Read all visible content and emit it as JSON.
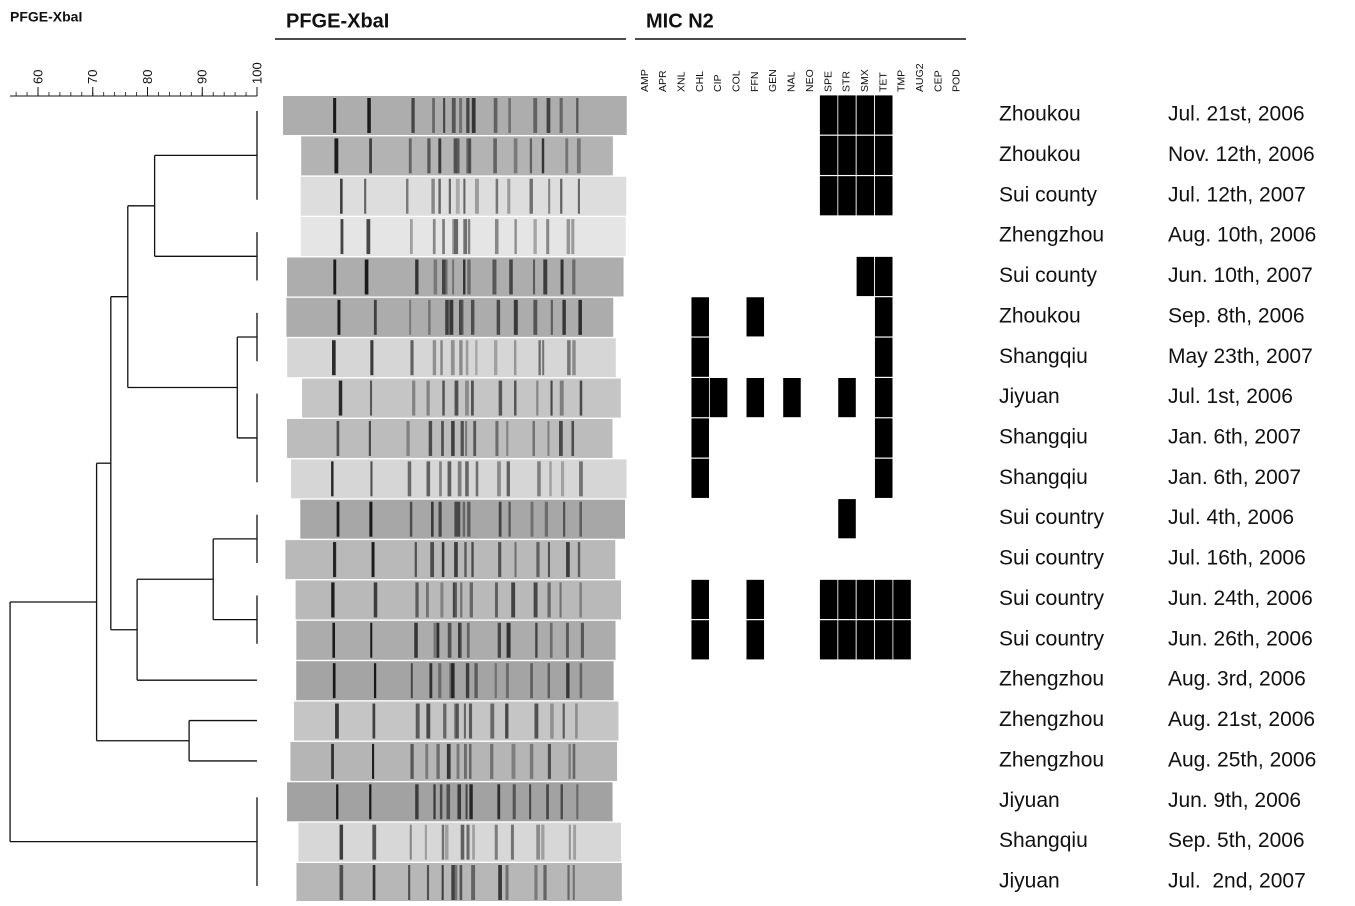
{
  "figure_label": "PFGE-XbaI",
  "scale": {
    "ticks": [
      60,
      70,
      80,
      90,
      100
    ]
  },
  "gel_header": "PFGE-XbaI",
  "mic_header": "MIC N2",
  "antibiotics": [
    "AMP",
    "APR",
    "XNL",
    "CHL",
    "CIP",
    "COL",
    "FFN",
    "GEN",
    "NAL",
    "NEO",
    "SPE",
    "STR",
    "SMX",
    "TET",
    "TMP",
    "AUG2",
    "CEP",
    "POD"
  ],
  "tree": {
    "similarity": 54.9,
    "children": [
      {
        "similarity": 70.7,
        "children": [
          {
            "similarity": 73.3,
            "children": [
              {
                "similarity": 76.4,
                "children": [
                  {
                    "similarity": 81.3,
                    "children": [
                      {
                        "similarity": 100,
                        "leaves": 3
                      },
                      {
                        "similarity": 100,
                        "leaves": 2
                      }
                    ]
                  },
                  {
                    "similarity": 96.4,
                    "children": [
                      {
                        "similarity": 100,
                        "leaves": 2
                      },
                      {
                        "similarity": 100,
                        "leaves": 3
                      }
                    ]
                  }
                ]
              },
              {
                "similarity": 78.1,
                "children": [
                  {
                    "similarity": 92,
                    "children": [
                      {
                        "similarity": 100,
                        "leaves": 2
                      },
                      {
                        "similarity": 100,
                        "leaves": 2
                      }
                    ]
                  },
                  {
                    "leaves": 1
                  }
                ]
              }
            ]
          },
          {
            "similarity": 87.6,
            "children": [
              {
                "leaves": 1
              },
              {
                "leaves": 1
              }
            ]
          }
        ]
      },
      {
        "similarity": 100,
        "leaves": 3
      }
    ]
  },
  "rows": [
    {
      "location": "Zhoukou",
      "date": "Jul. 21st, 2006",
      "resistance": [
        0,
        0,
        0,
        0,
        0,
        0,
        0,
        0,
        0,
        0,
        1,
        1,
        1,
        1,
        0,
        0,
        0,
        0
      ]
    },
    {
      "location": "Zhoukou",
      "date": "Nov. 12th, 2006",
      "resistance": [
        0,
        0,
        0,
        0,
        0,
        0,
        0,
        0,
        0,
        0,
        1,
        1,
        1,
        1,
        0,
        0,
        0,
        0
      ]
    },
    {
      "location": "Sui county",
      "date": "Jul. 12th, 2007",
      "resistance": [
        0,
        0,
        0,
        0,
        0,
        0,
        0,
        0,
        0,
        0,
        1,
        1,
        1,
        1,
        0,
        0,
        0,
        0
      ]
    },
    {
      "location": "Zhengzhou",
      "date": "Aug. 10th, 2006",
      "resistance": [
        0,
        0,
        0,
        0,
        0,
        0,
        0,
        0,
        0,
        0,
        0,
        0,
        0,
        0,
        0,
        0,
        0,
        0
      ]
    },
    {
      "location": "Sui county",
      "date": "Jun. 10th, 2007",
      "resistance": [
        0,
        0,
        0,
        0,
        0,
        0,
        0,
        0,
        0,
        0,
        0,
        0,
        1,
        1,
        0,
        0,
        0,
        0
      ]
    },
    {
      "location": "Zhoukou",
      "date": "Sep. 8th, 2006",
      "resistance": [
        0,
        0,
        0,
        1,
        0,
        0,
        1,
        0,
        0,
        0,
        0,
        0,
        0,
        1,
        0,
        0,
        0,
        0
      ]
    },
    {
      "location": "Shangqiu",
      "date": "May 23th, 2007",
      "resistance": [
        0,
        0,
        0,
        1,
        0,
        0,
        0,
        0,
        0,
        0,
        0,
        0,
        0,
        1,
        0,
        0,
        0,
        0
      ]
    },
    {
      "location": "Jiyuan",
      "date": "Jul. 1st, 2006",
      "resistance": [
        0,
        0,
        0,
        1,
        1,
        0,
        1,
        0,
        1,
        0,
        0,
        1,
        0,
        1,
        0,
        0,
        0,
        0
      ]
    },
    {
      "location": "Shangqiu",
      "date": "Jan. 6th, 2007",
      "resistance": [
        0,
        0,
        0,
        1,
        0,
        0,
        0,
        0,
        0,
        0,
        0,
        0,
        0,
        1,
        0,
        0,
        0,
        0
      ]
    },
    {
      "location": "Shangqiu",
      "date": "Jan. 6th, 2007",
      "resistance": [
        0,
        0,
        0,
        1,
        0,
        0,
        0,
        0,
        0,
        0,
        0,
        0,
        0,
        1,
        0,
        0,
        0,
        0
      ]
    },
    {
      "location": "Sui country",
      "date": "Jul. 4th, 2006",
      "resistance": [
        0,
        0,
        0,
        0,
        0,
        0,
        0,
        0,
        0,
        0,
        0,
        1,
        0,
        0,
        0,
        0,
        0,
        0
      ]
    },
    {
      "location": "Sui country",
      "date": "Jul. 16th, 2006",
      "resistance": [
        0,
        0,
        0,
        0,
        0,
        0,
        0,
        0,
        0,
        0,
        0,
        0,
        0,
        0,
        0,
        0,
        0,
        0
      ]
    },
    {
      "location": "Sui country",
      "date": "Jun. 24th, 2006",
      "resistance": [
        0,
        0,
        0,
        1,
        0,
        0,
        1,
        0,
        0,
        0,
        1,
        1,
        1,
        1,
        1,
        0,
        0,
        0
      ]
    },
    {
      "location": "Sui country",
      "date": "Jun. 26th, 2006",
      "resistance": [
        0,
        0,
        0,
        1,
        0,
        0,
        1,
        0,
        0,
        0,
        1,
        1,
        1,
        1,
        1,
        0,
        0,
        0
      ]
    },
    {
      "location": "Zhengzhou",
      "date": "Aug. 3rd, 2006",
      "resistance": [
        0,
        0,
        0,
        0,
        0,
        0,
        0,
        0,
        0,
        0,
        0,
        0,
        0,
        0,
        0,
        0,
        0,
        0
      ]
    },
    {
      "location": "Zhengzhou",
      "date": "Aug. 21st, 2006",
      "resistance": [
        0,
        0,
        0,
        0,
        0,
        0,
        0,
        0,
        0,
        0,
        0,
        0,
        0,
        0,
        0,
        0,
        0,
        0
      ]
    },
    {
      "location": "Zhengzhou",
      "date": "Aug. 25th, 2006",
      "resistance": [
        0,
        0,
        0,
        0,
        0,
        0,
        0,
        0,
        0,
        0,
        0,
        0,
        0,
        0,
        0,
        0,
        0,
        0
      ]
    },
    {
      "location": "Jiyuan",
      "date": "Jun. 9th, 2006",
      "resistance": [
        0,
        0,
        0,
        0,
        0,
        0,
        0,
        0,
        0,
        0,
        0,
        0,
        0,
        0,
        0,
        0,
        0,
        0
      ]
    },
    {
      "location": "Shangqiu",
      "date": "Sep. 5th, 2006",
      "resistance": [
        0,
        0,
        0,
        0,
        0,
        0,
        0,
        0,
        0,
        0,
        0,
        0,
        0,
        0,
        0,
        0,
        0,
        0
      ]
    },
    {
      "location": "Jiyuan",
      "date": "Jul.  2nd, 2007",
      "resistance": [
        0,
        0,
        0,
        0,
        0,
        0,
        0,
        0,
        0,
        0,
        0,
        0,
        0,
        0,
        0,
        0,
        0,
        0
      ]
    }
  ]
}
